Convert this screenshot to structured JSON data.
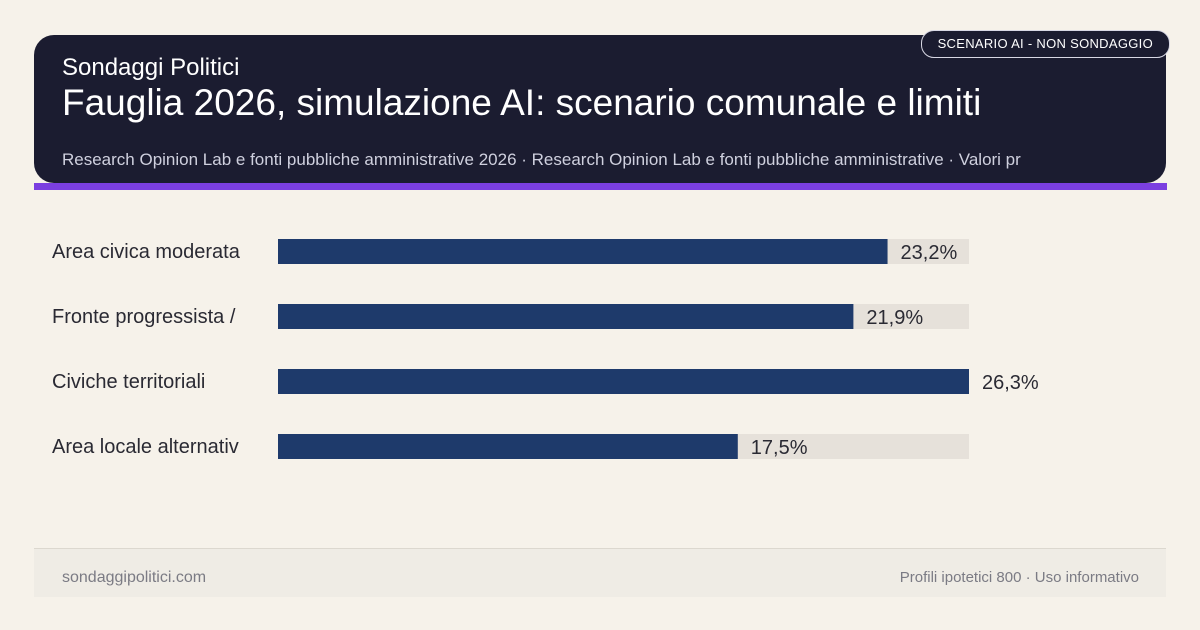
{
  "header": {
    "kicker": "Sondaggi Politici",
    "title": "Fauglia 2026, simulazione AI: scenario comunale e limiti",
    "source": "Research Opinion Lab e fonti pubbliche amministrative 2026 · Research Opinion Lab e fonti pubbliche amministrative · Valori pr",
    "badge": "SCENARIO AI - NON SONDAGGIO"
  },
  "colors": {
    "header_bg": "#1b1c30",
    "accent": "#7b3fe0",
    "bar": "#1e3a6b",
    "track": "#e6e1da",
    "background": "#f6f2ea"
  },
  "chart_data": {
    "type": "bar",
    "orientation": "horizontal",
    "categories": [
      "Area civica moderata",
      "Fronte progressista /",
      "Civiche territoriali",
      "Area locale alternativ"
    ],
    "values": [
      23.2,
      21.9,
      26.3,
      17.5
    ],
    "value_labels": [
      "23,2%",
      "21,9%",
      "26,3%",
      "17,5%"
    ],
    "xlim": [
      0,
      26.3
    ],
    "title": "",
    "xlabel": "",
    "ylabel": "",
    "grid": false
  },
  "footer": {
    "site": "sondaggipolitici.com",
    "note": "Profili ipotetici 800 · Uso informativo"
  }
}
